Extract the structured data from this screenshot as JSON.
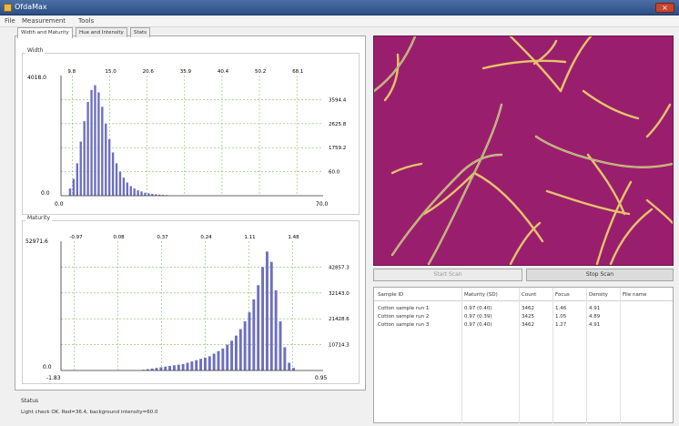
{
  "window": {
    "title": "OfdaMax",
    "close_glyph": "×"
  },
  "menu": [
    "File",
    "Measurement",
    "Tools"
  ],
  "tabs": [
    "Width and Maturity",
    "Hue and Intensity",
    "Stats"
  ],
  "width_panel": {
    "title": "Width",
    "y_max_label": "4018.0",
    "y_min_label": "0.0",
    "x_labels": [
      "0.0",
      "70.0"
    ],
    "top_ticks": [
      "9.8",
      "15.0",
      "20.6",
      "35.9",
      "40.4",
      "50.2",
      "68.1"
    ],
    "right_ticks": [
      "3594.4",
      "2625.8",
      "1759.2",
      "60.0"
    ]
  },
  "maturity_panel": {
    "title": "Maturity",
    "y_max_label": "52971.6",
    "y_min_label": "0.0",
    "x_labels": [
      "-1.83",
      "0.95"
    ],
    "top_ticks": [
      "-0.97",
      "0.08",
      "0.37",
      "0.24",
      "1.11",
      "1.48"
    ],
    "right_ticks": [
      "42857.3",
      "32143.0",
      "21428.6",
      "10714.3"
    ]
  },
  "chart_data": [
    {
      "type": "bar",
      "title": "Width",
      "ylim": [
        0,
        4018.0
      ],
      "values": [
        0.06,
        0.14,
        0.27,
        0.45,
        0.62,
        0.78,
        0.88,
        0.92,
        0.86,
        0.74,
        0.6,
        0.47,
        0.36,
        0.27,
        0.2,
        0.15,
        0.11,
        0.08,
        0.06,
        0.045,
        0.035,
        0.025,
        0.02,
        0.015,
        0.012,
        0.009,
        0.007,
        0.005
      ]
    },
    {
      "type": "bar",
      "title": "Maturity",
      "ylim": [
        0,
        52971.6
      ],
      "values": [
        0.005,
        0.01,
        0.015,
        0.02,
        0.025,
        0.03,
        0.035,
        0.04,
        0.045,
        0.05,
        0.06,
        0.07,
        0.08,
        0.09,
        0.1,
        0.11,
        0.13,
        0.15,
        0.17,
        0.2,
        0.23,
        0.27,
        0.32,
        0.38,
        0.45,
        0.55,
        0.66,
        0.8,
        0.92,
        0.84,
        0.62,
        0.38,
        0.18,
        0.06,
        0.02
      ]
    }
  ],
  "status": {
    "title": "Status",
    "text": "Light check OK. Red=36.4, background intensity=60.0"
  },
  "buttons": {
    "start": "Start Scan",
    "stop": "Stop Scan"
  },
  "table": {
    "columns": [
      "Sample ID",
      "Maturity (SD)",
      "Count",
      "Focus",
      "Density",
      "File name"
    ],
    "rows": [
      [
        "Cotton sample run 1",
        "0.97 (0.40)",
        "3462",
        "1.46",
        "4.91",
        ""
      ],
      [
        "Cotton sample run 2",
        "0.97 (0.39)",
        "3425",
        "1.05",
        "4.89",
        ""
      ],
      [
        "Cotton sample run 3",
        "0.97 (0.40)",
        "3462",
        "1.27",
        "4.91",
        ""
      ]
    ]
  },
  "colors": {
    "bar": "#6d6fbf",
    "grid": "#7fbf5f",
    "image_bg": "#9a1e6e",
    "fiber": "#e6c36a"
  }
}
